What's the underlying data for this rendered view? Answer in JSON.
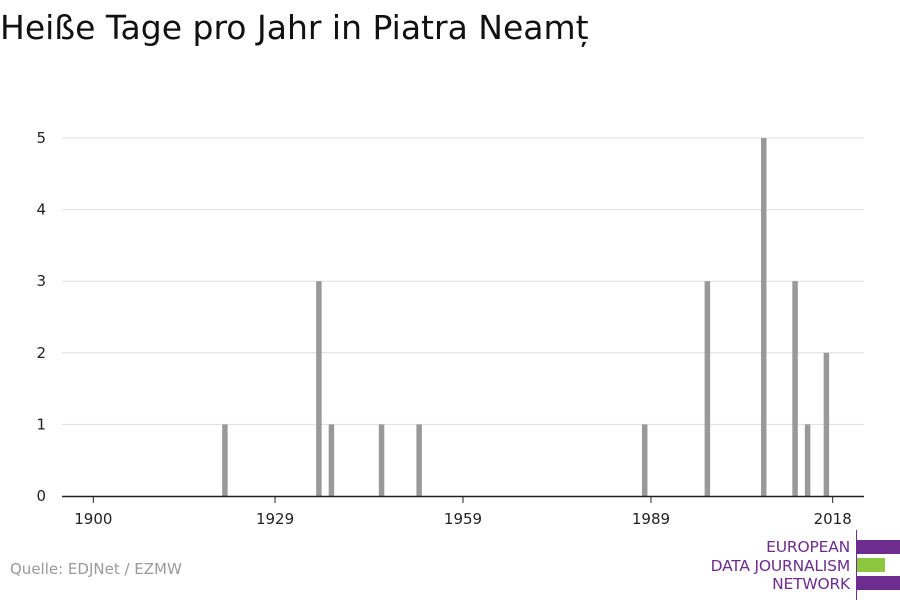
{
  "title": "Heiße Tage pro Jahr in Piatra Neamț",
  "source": "Quelle: EDJNet / EZMW",
  "logo": {
    "lines": [
      "EUROPEAN",
      "DATA JOURNALISM",
      "NETWORK"
    ],
    "colors": [
      "#6d2c8e",
      "#8dc63f",
      "#6d2c8e"
    ]
  },
  "chart_data": {
    "type": "bar",
    "title": "Heiße Tage pro Jahr in Piatra Neamț",
    "xlabel": "",
    "ylabel": "",
    "bar_color": "#999999",
    "grid": true,
    "xlim": [
      1895,
      2023
    ],
    "ylim": [
      0,
      5.5
    ],
    "x_ticks": [
      1900,
      1929,
      1959,
      1989,
      2018
    ],
    "y_ticks": [
      0,
      1,
      2,
      3,
      4,
      5
    ],
    "x": [
      1921,
      1936,
      1938,
      1946,
      1952,
      1988,
      1998,
      2007,
      2012,
      2014,
      2017
    ],
    "values": [
      1,
      3,
      1,
      1,
      1,
      1,
      3,
      5,
      3,
      1,
      2
    ]
  }
}
